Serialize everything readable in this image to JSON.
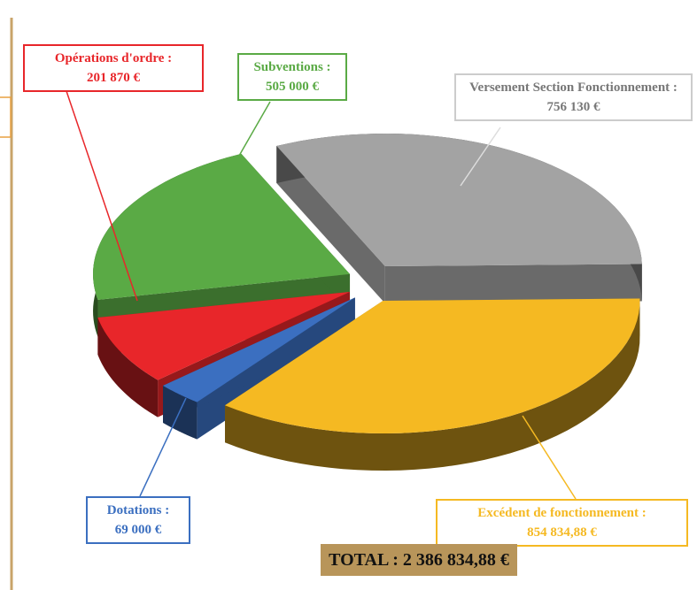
{
  "chart_data": {
    "type": "pie",
    "categories": [
      "Opérations d'ordre :",
      "Subventions :",
      "Versement Section Fonctionnement :",
      "Excédent de fonctionnement :",
      "Dotations :"
    ],
    "values": [
      201870,
      505000,
      756130,
      854834.88,
      69000
    ],
    "value_labels": [
      "201 870 €",
      "505 000 €",
      "756 130 €",
      "854 834,88 €",
      "69 000 €"
    ],
    "colors": [
      "#e8262a",
      "#5aaa45",
      "#a3a3a3",
      "#f5b922",
      "#3b6fc0"
    ],
    "total": "TOTAL : 2 386 834,88 €"
  }
}
